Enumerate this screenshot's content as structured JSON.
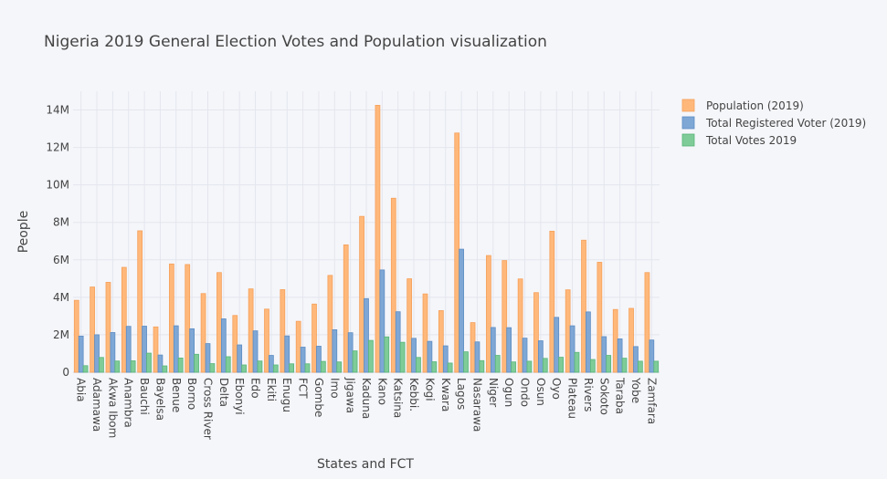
{
  "chart_data": {
    "type": "bar",
    "title": "Nigeria 2019 General Election Votes and Population visualization",
    "xlabel": "States and FCT",
    "ylabel": "People",
    "ylim": [
      0,
      15000000
    ],
    "yticks": [
      0,
      2000000,
      4000000,
      6000000,
      8000000,
      10000000,
      12000000,
      14000000
    ],
    "ytick_labels": [
      "0",
      "2M",
      "4M",
      "6M",
      "8M",
      "10M",
      "12M",
      "14M"
    ],
    "grid": true,
    "legend_position": "top-right",
    "categories": [
      "Abia",
      "Adamawa",
      "Akwa Ibom",
      "Anambra",
      "Bauchi",
      "Bayelsa",
      "Benue",
      "Borno",
      "Cross River",
      "Delta",
      "Ebonyi",
      "Edo",
      "Ekiti",
      "Enugu",
      "FCT",
      "Gombe",
      "Imo",
      "Jigawa",
      "Kaduna",
      "Kano",
      "Katsina",
      "Kebbi.",
      "Kogi",
      "Kwara",
      "Lagos",
      "Nasarawa",
      "Niger",
      "Ogun",
      "Ondo",
      "Osun",
      "Oyo",
      "Plateau",
      "Rivers",
      "Sokoto",
      "Taraba",
      "Yobe",
      "Zamfara"
    ],
    "series": [
      {
        "name": "Population (2019)",
        "color": "#ffb87a",
        "stroke": "#f5a05a",
        "values": [
          3840000,
          4550000,
          4800000,
          5600000,
          7550000,
          2420000,
          5780000,
          5750000,
          4200000,
          5320000,
          3030000,
          4450000,
          3370000,
          4410000,
          2720000,
          3640000,
          5170000,
          6800000,
          8320000,
          14250000,
          9290000,
          4990000,
          4180000,
          3290000,
          12770000,
          2650000,
          6230000,
          5960000,
          4980000,
          4250000,
          7530000,
          4400000,
          7050000,
          5870000,
          3350000,
          3410000,
          5320000
        ]
      },
      {
        "name": "Total Registered Voter (2019)",
        "color": "#7ea7d6",
        "stroke": "#5d8cc2",
        "values": [
          1930000,
          2000000,
          2120000,
          2450000,
          2460000,
          920000,
          2480000,
          2320000,
          1530000,
          2850000,
          1460000,
          2210000,
          900000,
          1940000,
          1340000,
          1390000,
          2270000,
          2110000,
          3930000,
          5460000,
          3230000,
          1810000,
          1650000,
          1410000,
          6570000,
          1620000,
          2390000,
          2380000,
          1820000,
          1680000,
          2930000,
          2480000,
          3220000,
          1900000,
          1780000,
          1370000,
          1720000
        ]
      },
      {
        "name": "Total Votes 2019",
        "color": "#7fcc98",
        "stroke": "#58b57a",
        "values": [
          350000,
          790000,
          600000,
          610000,
          1020000,
          340000,
          760000,
          960000,
          460000,
          830000,
          390000,
          600000,
          390000,
          450000,
          450000,
          580000,
          550000,
          1140000,
          1700000,
          1890000,
          1600000,
          790000,
          560000,
          490000,
          1090000,
          620000,
          900000,
          550000,
          590000,
          740000,
          800000,
          1060000,
          680000,
          900000,
          750000,
          590000,
          590000
        ]
      }
    ]
  }
}
